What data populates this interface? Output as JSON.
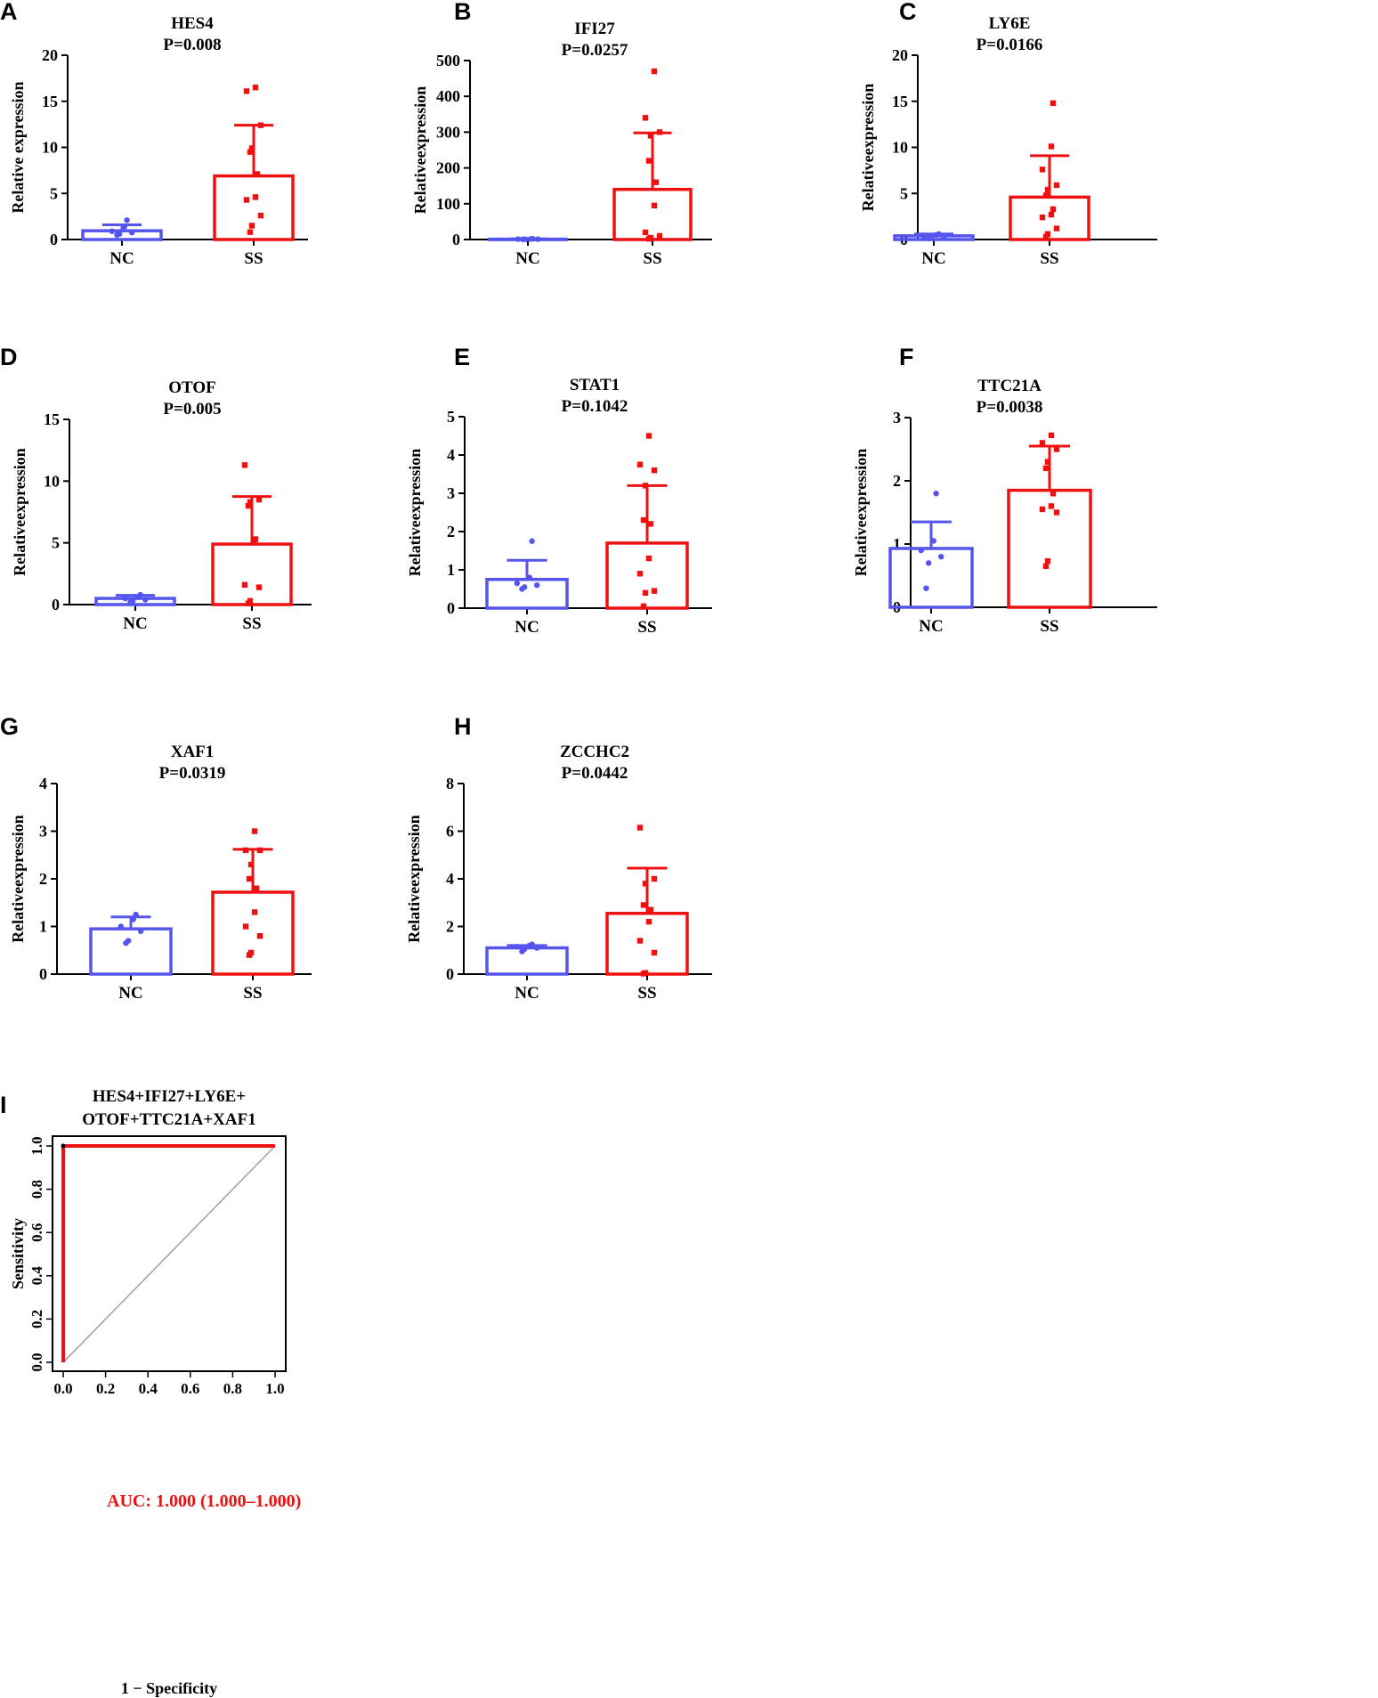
{
  "colors": {
    "nc": "#5555ee",
    "ss": "#ee1111",
    "axis": "#000000",
    "diag": "#a0a0a0",
    "roc": "#ee1111"
  },
  "chart_data": [
    {
      "panel": "A",
      "type": "bar",
      "title": "HES4",
      "subtitle": "P=0.008",
      "ylabel": "Relative expression",
      "ylim": [
        0,
        20
      ],
      "yticks": [
        0,
        5,
        10,
        15,
        20
      ],
      "categories": [
        "NC",
        "SS"
      ],
      "values": [
        0.95,
        6.9
      ],
      "sd": [
        0.65,
        5.5
      ],
      "points": [
        [
          0.5,
          0.6,
          0.75,
          0.9,
          1.4,
          2.1
        ],
        [
          0.8,
          1.5,
          2.6,
          4.3,
          4.6,
          7.1,
          9.5,
          9.9,
          12.4,
          16.1,
          16.5
        ]
      ]
    },
    {
      "panel": "B",
      "type": "bar",
      "title": "IFI27",
      "subtitle": "P=0.0257",
      "ylabel": "Relativeexpression",
      "ylim": [
        0,
        500
      ],
      "yticks": [
        0,
        100,
        200,
        300,
        400,
        500
      ],
      "categories": [
        "NC",
        "SS"
      ],
      "values": [
        1,
        140
      ],
      "sd": [
        1,
        158
      ],
      "points": [
        [
          0.5,
          0.7,
          1,
          1.2,
          1.5,
          2
        ],
        [
          2,
          5,
          10,
          20,
          95,
          160,
          220,
          290,
          300,
          340,
          470
        ]
      ]
    },
    {
      "panel": "C",
      "type": "bar",
      "title": "LY6E",
      "subtitle": "P=0.0166",
      "ylabel": "Relativeexpression",
      "ylim": [
        0,
        20
      ],
      "yticks": [
        0,
        5,
        10,
        15,
        20
      ],
      "categories": [
        "NC",
        "SS"
      ],
      "values": [
        0.4,
        4.6
      ],
      "sd": [
        0.2,
        4.5
      ],
      "points": [
        [
          0.1,
          0.2,
          0.3,
          0.4,
          0.5,
          0.6
        ],
        [
          0.3,
          0.6,
          1.2,
          2.4,
          2.7,
          3.3,
          4.8,
          5.4,
          5.9,
          7.6,
          10.1,
          14.8
        ]
      ]
    },
    {
      "panel": "D",
      "type": "bar",
      "title": "OTOF",
      "subtitle": "P=0.005",
      "ylabel": "Relativeexpression",
      "ylim": [
        0,
        15
      ],
      "yticks": [
        0,
        5,
        10,
        15
      ],
      "categories": [
        "NC",
        "SS"
      ],
      "values": [
        0.5,
        4.9
      ],
      "sd": [
        0.25,
        3.85
      ],
      "points": [
        [
          0.2,
          0.3,
          0.4,
          0.5,
          0.6,
          0.8
        ],
        [
          0.1,
          0.3,
          1.4,
          1.6,
          5.1,
          5.3,
          8.0,
          8.3,
          8.5,
          11.3
        ]
      ]
    },
    {
      "panel": "E",
      "type": "bar",
      "title": "STAT1",
      "subtitle": "P=0.1042",
      "ylabel": "Relativeexpression",
      "ylim": [
        0,
        5
      ],
      "yticks": [
        0,
        1,
        2,
        3,
        4,
        5
      ],
      "categories": [
        "NC",
        "SS"
      ],
      "values": [
        0.75,
        1.7
      ],
      "sd": [
        0.5,
        1.5
      ],
      "points": [
        [
          0.5,
          0.55,
          0.6,
          0.65,
          0.8,
          1.75
        ],
        [
          0.05,
          0.4,
          0.45,
          0.9,
          1.3,
          2.2,
          2.3,
          3.2,
          3.6,
          3.75,
          4.5
        ]
      ]
    },
    {
      "panel": "F",
      "type": "bar",
      "title": "TTC21A",
      "subtitle": "P=0.0038",
      "ylabel": "Relativeexpression",
      "ylim": [
        0,
        3
      ],
      "yticks": [
        0,
        1,
        2,
        3
      ],
      "categories": [
        "NC",
        "SS"
      ],
      "values": [
        0.93,
        1.85
      ],
      "sd": [
        0.42,
        0.7
      ],
      "points": [
        [
          0.3,
          0.7,
          0.8,
          0.9,
          1.05,
          1.8
        ],
        [
          0.65,
          0.73,
          1.5,
          1.55,
          1.6,
          1.8,
          2.2,
          2.3,
          2.5,
          2.6,
          2.72
        ]
      ]
    },
    {
      "panel": "G",
      "type": "bar",
      "title": "XAF1",
      "subtitle": "P=0.0319",
      "ylabel": "Relativeexpression",
      "ylim": [
        0,
        4
      ],
      "yticks": [
        0,
        1,
        2,
        3,
        4
      ],
      "categories": [
        "NC",
        "SS"
      ],
      "values": [
        0.95,
        1.72
      ],
      "sd": [
        0.25,
        0.9
      ],
      "points": [
        [
          0.65,
          0.7,
          0.9,
          1.0,
          1.15,
          1.25
        ],
        [
          0.4,
          0.45,
          0.8,
          1.0,
          1.3,
          1.8,
          2.0,
          2.3,
          2.6,
          2.6,
          3.0
        ]
      ]
    },
    {
      "panel": "H",
      "type": "bar",
      "title": "ZCCHC2",
      "subtitle": "P=0.0442",
      "ylabel": "Relativeexpression",
      "ylim": [
        0,
        8
      ],
      "yticks": [
        0,
        2,
        4,
        6,
        8
      ],
      "categories": [
        "NC",
        "SS"
      ],
      "values": [
        1.1,
        2.55
      ],
      "sd": [
        0.1,
        1.9
      ],
      "points": [
        [
          0.95,
          1.05,
          1.1,
          1.15,
          1.2,
          1.25
        ],
        [
          0.02,
          0.05,
          0.9,
          1.4,
          2.2,
          2.7,
          2.9,
          3.8,
          4.0,
          6.15
        ]
      ]
    },
    {
      "panel": "I",
      "type": "line",
      "title": "HES4+IFI27+LY6E+",
      "title2": "OTOF+TTC21A+XAF1",
      "xlabel": "1 − Specificity",
      "ylabel": "Sensitivity",
      "xlim": [
        0,
        1
      ],
      "ylim": [
        0,
        1
      ],
      "xticks": [
        "0.0",
        "0.2",
        "0.4",
        "0.6",
        "0.8",
        "1.0"
      ],
      "yticks": [
        "0.0",
        "0.2",
        "0.4",
        "0.6",
        "0.8",
        "1.0"
      ],
      "roc": {
        "x": [
          0,
          0,
          1
        ],
        "y": [
          0,
          1,
          1
        ]
      },
      "reference_line": {
        "x": [
          0,
          1
        ],
        "y": [
          0,
          1
        ]
      },
      "auc_label": "AUC: 1.000 (1.000–1.000)"
    }
  ]
}
